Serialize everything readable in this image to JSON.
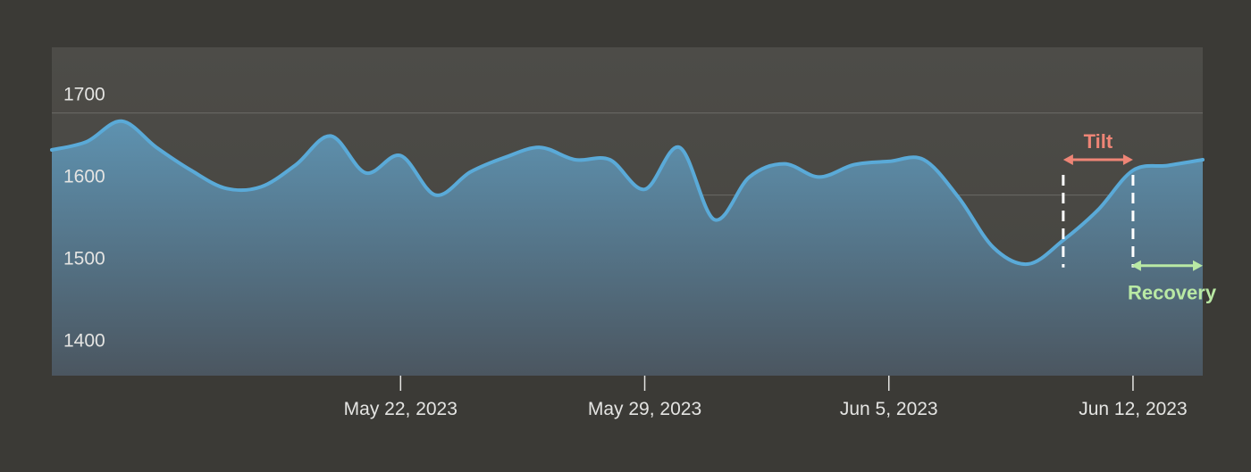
{
  "chart_data": {
    "type": "area",
    "title": "",
    "xlabel": "",
    "ylabel": "",
    "ylim": [
      1380,
      1780
    ],
    "xlim": [
      "2023-05-12",
      "2023-06-14"
    ],
    "grid": true,
    "legend": "none",
    "y_ticks": [
      1400,
      1500,
      1600,
      1700
    ],
    "x_ticks": [
      {
        "date": "2023-05-22",
        "label": "May 22, 2023"
      },
      {
        "date": "2023-05-29",
        "label": "May 29, 2023"
      },
      {
        "date": "2023-06-05",
        "label": "Jun 5, 2023"
      },
      {
        "date": "2023-06-12",
        "label": "Jun 12, 2023"
      }
    ],
    "series": [
      {
        "x": [
          "2023-05-12",
          "2023-05-13",
          "2023-05-14",
          "2023-05-15",
          "2023-05-16",
          "2023-05-17",
          "2023-05-18",
          "2023-05-19",
          "2023-05-20",
          "2023-05-21",
          "2023-05-22",
          "2023-05-23",
          "2023-05-24",
          "2023-05-25",
          "2023-05-26",
          "2023-05-27",
          "2023-05-28",
          "2023-05-29",
          "2023-05-30",
          "2023-05-31",
          "2023-06-01",
          "2023-06-02",
          "2023-06-03",
          "2023-06-04",
          "2023-06-05",
          "2023-06-06",
          "2023-06-07",
          "2023-06-08",
          "2023-06-09",
          "2023-06-10",
          "2023-06-11",
          "2023-06-12",
          "2023-06-13",
          "2023-06-14"
        ],
        "y": [
          1655,
          1665,
          1690,
          1658,
          1630,
          1608,
          1610,
          1637,
          1672,
          1627,
          1648,
          1600,
          1628,
          1646,
          1658,
          1643,
          1643,
          1607,
          1658,
          1570,
          1622,
          1638,
          1622,
          1637,
          1641,
          1643,
          1597,
          1536,
          1516,
          1545,
          1582,
          1630,
          1636,
          1643
        ]
      }
    ],
    "annotations": [
      {
        "label": "Tilt",
        "x_start": "2023-06-10",
        "x_end": "2023-06-12",
        "y": 1643,
        "color": "#ee8576"
      },
      {
        "label": "Recovery",
        "x_start": "2023-06-12",
        "x_end": "2023-06-14",
        "y": 1514,
        "color": "#b9e9a4"
      }
    ]
  },
  "colors": {
    "page_background": "#3b3a36",
    "plot_background": "#4a4945",
    "line": "#5aaad8",
    "area_top": "#5e92b0",
    "area_bottom": "#4b5660",
    "grid": "#6b6a66",
    "tick_text": "#e4e4e2",
    "marker": "#ffffff"
  }
}
